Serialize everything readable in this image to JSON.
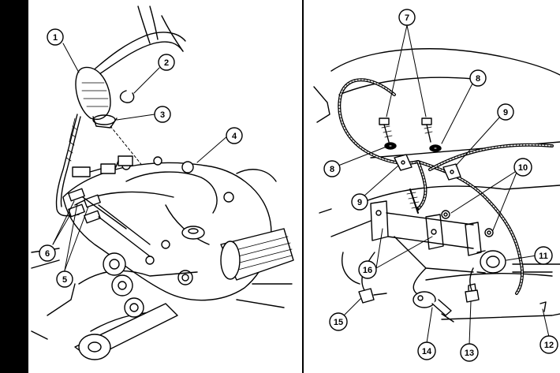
{
  "callouts": {
    "c1": "1",
    "c2": "2",
    "c3": "3",
    "c4": "4",
    "c5": "5",
    "c6": "6",
    "c7": "7",
    "c8a": "8",
    "c8b": "8",
    "c9a": "9",
    "c9b": "9",
    "c10": "10",
    "c11": "11",
    "c12": "12",
    "c13": "13",
    "c14": "14",
    "c15": "15",
    "c16": "16"
  },
  "colors": {
    "ink": "#000000",
    "paper": "#ffffff"
  }
}
